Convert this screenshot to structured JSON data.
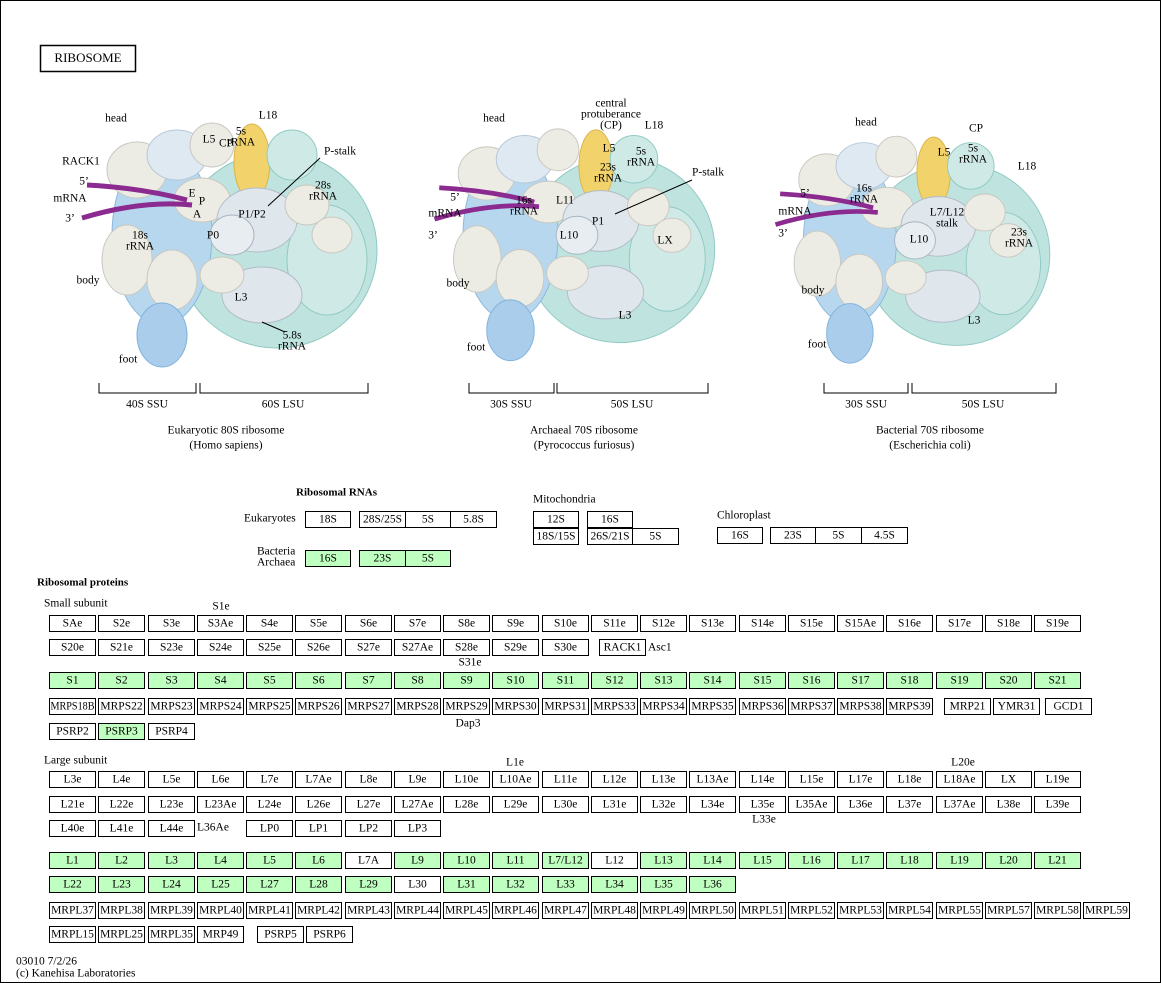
{
  "title": "RIBOSOME",
  "ribosomes": [
    {
      "labels": [
        [
          "head"
        ],
        [
          "CP"
        ],
        [
          "L18"
        ],
        [
          "L5"
        ],
        [
          "5s",
          "rRNA"
        ],
        [
          "P-stalk"
        ],
        [
          "RACK1"
        ],
        [
          "5’"
        ],
        [
          "mRNA"
        ],
        [
          "3’"
        ],
        [
          "E"
        ],
        [
          "P"
        ],
        [
          "A"
        ],
        [
          "28s",
          "rRNA"
        ],
        [
          "18s",
          "rRNA"
        ],
        [
          "P1/P2"
        ],
        [
          "P0"
        ],
        [
          "body"
        ],
        [
          "L3"
        ],
        [
          "5.8s",
          "rRNA"
        ],
        [
          "foot"
        ]
      ],
      "ssu": "40S SSU",
      "lsu": "60S LSU",
      "caption": "Eukaryotic 80S ribosome",
      "species": "(Homo sapiens)"
    },
    {
      "labels": [
        [
          "head"
        ],
        [
          "central",
          "protuberance",
          "(CP)"
        ],
        [
          "L18"
        ],
        [
          "L5"
        ],
        [
          "5s",
          "rRNA"
        ],
        [
          "23s",
          "rRNA"
        ],
        [
          "P-stalk"
        ],
        [
          "5’"
        ],
        [
          "mRNA"
        ],
        [
          "3’"
        ],
        [
          "16s",
          "rRNA"
        ],
        [
          "L11"
        ],
        [
          "P1"
        ],
        [
          "L10"
        ],
        [
          "LX"
        ],
        [
          "body"
        ],
        [
          "L3"
        ],
        [
          "foot"
        ]
      ],
      "ssu": "30S SSU",
      "lsu": "50S LSU",
      "caption": "Archaeal 70S ribosome",
      "species": "(Pyrococcus furiosus)"
    },
    {
      "labels": [
        [
          "head"
        ],
        [
          "CP"
        ],
        [
          "L5"
        ],
        [
          "5s",
          "rRNA"
        ],
        [
          "L18"
        ],
        [
          "5’"
        ],
        [
          "mRNA"
        ],
        [
          "3’"
        ],
        [
          "16s",
          "rRNA"
        ],
        [
          "L7/L12",
          "stalk"
        ],
        [
          "L10"
        ],
        [
          "23s",
          "rRNA"
        ],
        [
          "body"
        ],
        [
          "L3"
        ],
        [
          "foot"
        ]
      ],
      "ssu": "30S SSU",
      "lsu": "50S LSU",
      "caption": "Bacterial 70S ribosome",
      "species": "(Escherichia coli)"
    }
  ],
  "rna": {
    "heading": "Ribosomal RNAs",
    "groups": [
      {
        "label": [
          "Eukaryotes"
        ],
        "boxes": [
          "18S",
          "28S/25S",
          "5S",
          "5.8S"
        ],
        "highlight": []
      },
      {
        "label": [
          "Bacteria",
          "Archaea"
        ],
        "boxes": [
          "16S",
          "23S",
          "5S"
        ],
        "highlight": [
          0,
          1,
          2
        ]
      },
      {
        "label": [
          "Mitochondria"
        ],
        "boxes": [
          "12S",
          "16S",
          "18S/15S",
          "26S/21S",
          "5S"
        ],
        "highlight": []
      },
      {
        "label": [
          "Chloroplast"
        ],
        "boxes": [
          "16S",
          "23S",
          "5S",
          "4.5S"
        ],
        "highlight": []
      }
    ]
  },
  "proteins": {
    "heading": "Ribosomal proteins",
    "subunits": [
      {
        "label": "Small subunit",
        "rows": [
          {
            "boxes": [
              "SAe",
              "S2e",
              "S3e",
              "S3Ae",
              "S4e",
              "S5e",
              "S6e",
              "S7e",
              "S8e",
              "S9e",
              "S10e",
              "S11e",
              "S12e",
              "S13e",
              "S14e",
              "S15e",
              "S15Ae",
              "S16e",
              "S17e",
              "S18e",
              "S19e"
            ],
            "highlight": []
          },
          {
            "boxes": [
              "S20e",
              "S21e",
              "S23e",
              "S24e",
              "S25e",
              "S26e",
              "S27e",
              "S27Ae",
              "S28e",
              "S29e",
              "S30e",
              "RACK1"
            ],
            "highlight": []
          },
          {
            "boxes": [
              "S1",
              "S2",
              "S3",
              "S4",
              "S5",
              "S6",
              "S7",
              "S8",
              "S9",
              "S10",
              "S11",
              "S12",
              "S13",
              "S14",
              "S15",
              "S16",
              "S17",
              "S18",
              "S19",
              "S20",
              "S21"
            ],
            "highlight": [
              0,
              1,
              2,
              3,
              4,
              5,
              6,
              7,
              8,
              9,
              10,
              11,
              12,
              13,
              14,
              15,
              16,
              17,
              18,
              19,
              20
            ]
          },
          {
            "boxes": [
              "MRPS18B",
              "MRPS22",
              "MRPS23",
              "MRPS24",
              "MRPS25",
              "MRPS26",
              "MRPS27",
              "MRPS28",
              "MRPS29",
              "MRPS30",
              "MRPS31",
              "MRPS33",
              "MRPS34",
              "MRPS35",
              "MRPS36",
              "MRPS37",
              "MRPS38",
              "MRPS39",
              "MRP21",
              "YMR31",
              "GCD1"
            ],
            "highlight": []
          },
          {
            "boxes": [
              "PSRP2",
              "PSRP3",
              "PSRP4"
            ],
            "highlight": [
              1
            ]
          }
        ],
        "notes": [
          "S1e",
          "Asc1",
          "S31e",
          "Dap3"
        ]
      },
      {
        "label": "Large subunit",
        "rows": [
          {
            "boxes": [
              "L3e",
              "L4e",
              "L5e",
              "L6e",
              "L7e",
              "L7Ae",
              "L8e",
              "L9e",
              "L10e",
              "L10Ae",
              "L11e",
              "L12e",
              "L13e",
              "L13Ae",
              "L14e",
              "L15e",
              "L17e",
              "L18e",
              "L18Ae",
              "LX",
              "L19e"
            ],
            "highlight": []
          },
          {
            "boxes": [
              "L21e",
              "L22e",
              "L23e",
              "L23Ae",
              "L24e",
              "L26e",
              "L27e",
              "L27Ae",
              "L28e",
              "L29e",
              "L30e",
              "L31e",
              "L32e",
              "L34e",
              "L35e",
              "L35Ae",
              "L36e",
              "L37e",
              "L37Ae",
              "L38e",
              "L39e"
            ],
            "highlight": []
          },
          {
            "boxes": [
              "L40e",
              "L41e",
              "L44e",
              "LP0",
              "LP1",
              "LP2",
              "LP3"
            ],
            "highlight": []
          },
          {
            "boxes": [
              "L1",
              "L2",
              "L3",
              "L4",
              "L5",
              "L6",
              "L7A",
              "L9",
              "L10",
              "L11",
              "L7/L12",
              "L12",
              "L13",
              "L14",
              "L15",
              "L16",
              "L17",
              "L18",
              "L19",
              "L20",
              "L21"
            ],
            "highlight": [
              0,
              1,
              2,
              3,
              4,
              5,
              7,
              8,
              9,
              10,
              12,
              13,
              14,
              15,
              16,
              17,
              18,
              19,
              20
            ]
          },
          {
            "boxes": [
              "L22",
              "L23",
              "L24",
              "L25",
              "L27",
              "L28",
              "L29",
              "L30",
              "L31",
              "L32",
              "L33",
              "L34",
              "L35",
              "L36"
            ],
            "highlight": [
              0,
              1,
              2,
              3,
              4,
              5,
              6,
              8,
              9,
              10,
              11,
              12,
              13
            ]
          },
          {
            "boxes": [
              "MRPL37",
              "MRPL38",
              "MRPL39",
              "MRPL40",
              "MRPL41",
              "MRPL42",
              "MRPL43",
              "MRPL44",
              "MRPL45",
              "MRPL46",
              "MRPL47",
              "MRPL48",
              "MRPL49",
              "MRPL50",
              "MRPL51",
              "MRPL52",
              "MRPL53",
              "MRPL54",
              "MRPL55",
              "MRPL57",
              "MRPL58",
              "MRPL59"
            ],
            "highlight": []
          },
          {
            "boxes": [
              "MRPL15",
              "MRPL25",
              "MRPL35",
              "MRP49",
              "PSRP5",
              "PSRP6"
            ],
            "highlight": []
          }
        ],
        "notes": [
          "L1e",
          "L20e",
          "L33e",
          "L36Ae"
        ]
      }
    ]
  },
  "footer": [
    "03010 7/2/26",
    "(c) Kanehisa Laboratories"
  ]
}
